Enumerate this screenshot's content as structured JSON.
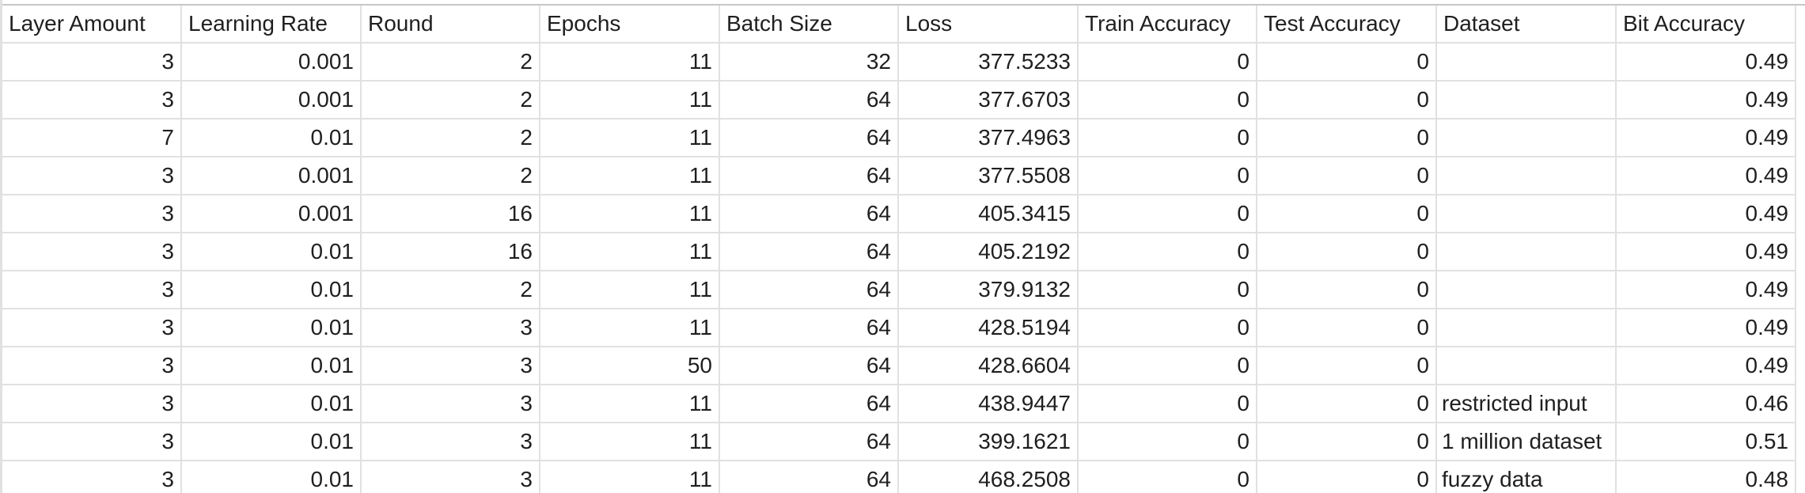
{
  "sheet": {
    "columns": [
      "Layer Amount",
      "Learning Rate",
      "Round",
      "Epochs",
      "Batch Size",
      "Loss",
      "Train Accuracy",
      "Test Accuracy",
      "Dataset",
      "Bit Accuracy"
    ],
    "rows": [
      [
        "3",
        "0.001",
        "2",
        "11",
        "32",
        "377.5233",
        "0",
        "0",
        "",
        "0.49"
      ],
      [
        "3",
        "0.001",
        "2",
        "11",
        "64",
        "377.6703",
        "0",
        "0",
        "",
        "0.49"
      ],
      [
        "7",
        "0.01",
        "2",
        "11",
        "64",
        "377.4963",
        "0",
        "0",
        "",
        "0.49"
      ],
      [
        "3",
        "0.001",
        "2",
        "11",
        "64",
        "377.5508",
        "0",
        "0",
        "",
        "0.49"
      ],
      [
        "3",
        "0.001",
        "16",
        "11",
        "64",
        "405.3415",
        "0",
        "0",
        "",
        "0.49"
      ],
      [
        "3",
        "0.01",
        "16",
        "11",
        "64",
        "405.2192",
        "0",
        "0",
        "",
        "0.49"
      ],
      [
        "3",
        "0.01",
        "2",
        "11",
        "64",
        "379.9132",
        "0",
        "0",
        "",
        "0.49"
      ],
      [
        "3",
        "0.01",
        "3",
        "11",
        "64",
        "428.5194",
        "0",
        "0",
        "",
        "0.49"
      ],
      [
        "3",
        "0.01",
        "3",
        "50",
        "64",
        "428.6604",
        "0",
        "0",
        "",
        "0.49"
      ],
      [
        "3",
        "0.01",
        "3",
        "11",
        "64",
        "438.9447",
        "0",
        "0",
        "restricted input",
        "0.46"
      ],
      [
        "3",
        "0.01",
        "3",
        "11",
        "64",
        "399.1621",
        "0",
        "0",
        "1 million dataset",
        "0.51"
      ],
      [
        "3",
        "0.01",
        "3",
        "11",
        "64",
        "468.2508",
        "0",
        "0",
        "fuzzy data",
        "0.48"
      ]
    ]
  }
}
